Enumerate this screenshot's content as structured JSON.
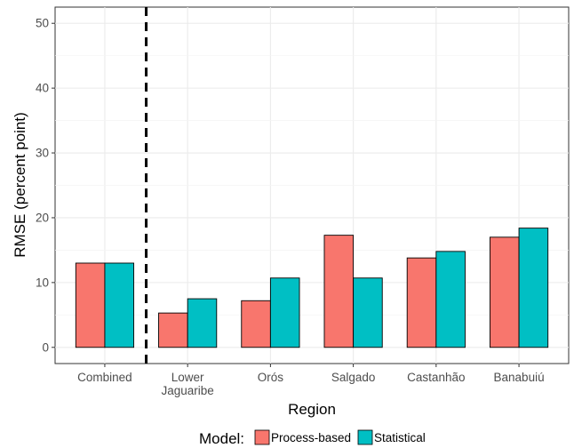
{
  "chart_data": {
    "type": "bar",
    "categories": [
      [
        "Combined"
      ],
      [
        "Lower",
        "Jaguaribe"
      ],
      [
        "Orós"
      ],
      [
        "Salgado"
      ],
      [
        "Castanhão"
      ],
      [
        "Banabuiú"
      ]
    ],
    "series": [
      {
        "name": "Process-based",
        "color": "#F8766D",
        "values": [
          13.0,
          5.3,
          7.2,
          17.3,
          13.8,
          17.0
        ]
      },
      {
        "name": "Statistical",
        "color": "#00BFC4",
        "values": [
          13.0,
          7.5,
          10.7,
          10.7,
          14.8,
          18.4
        ]
      }
    ],
    "title": "",
    "xlabel": "Region",
    "ylabel": "RMSE (percent point)",
    "ylim": [
      -2.5,
      52.5
    ],
    "yticks": [
      0,
      10,
      20,
      30,
      40,
      50
    ],
    "grid": true,
    "legend": {
      "title": "Model:",
      "position": "bottom"
    },
    "annotations": [
      {
        "type": "dashed-vertical-line",
        "between_categories": [
          "Combined",
          "Lower Jaguaribe"
        ]
      }
    ]
  }
}
